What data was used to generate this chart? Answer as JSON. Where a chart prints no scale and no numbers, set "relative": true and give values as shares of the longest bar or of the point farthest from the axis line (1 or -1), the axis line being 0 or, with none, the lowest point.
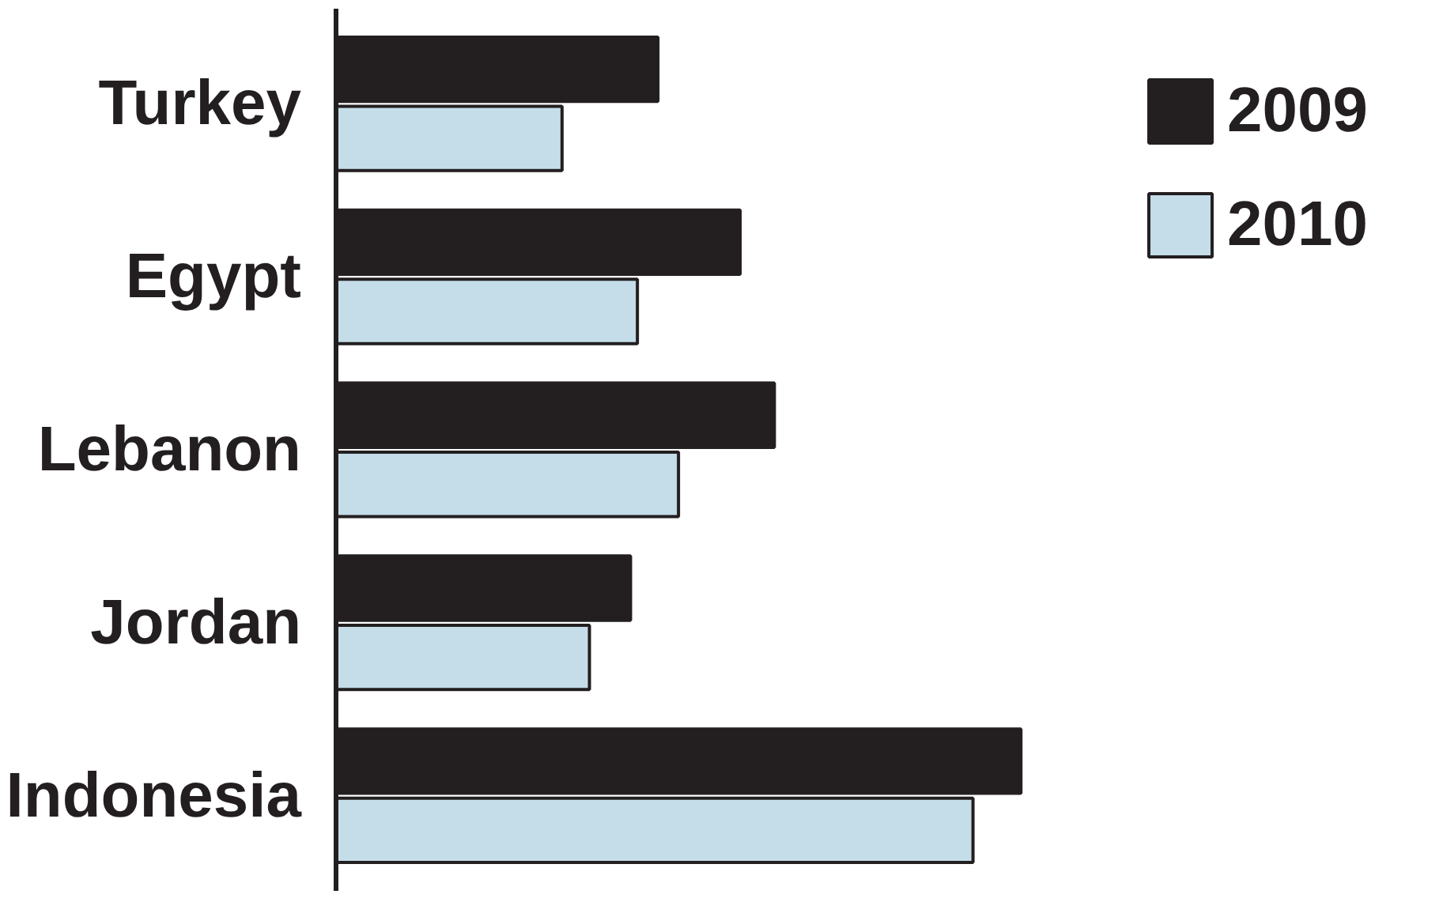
{
  "chart_data": {
    "type": "bar",
    "orientation": "horizontal",
    "relative": true,
    "categories": [
      "Turkey",
      "Egypt",
      "Lebanon",
      "Jordan",
      "Indonesia"
    ],
    "series": [
      {
        "name": "2009",
        "color": "#231f20",
        "values": [
          0.47,
          0.59,
          0.64,
          0.43,
          1
        ]
      },
      {
        "name": "2010",
        "color": "#c5dde9",
        "values": [
          0.33,
          0.44,
          0.5,
          0.37,
          0.93
        ]
      }
    ],
    "legend": "top right",
    "grid": false
  }
}
